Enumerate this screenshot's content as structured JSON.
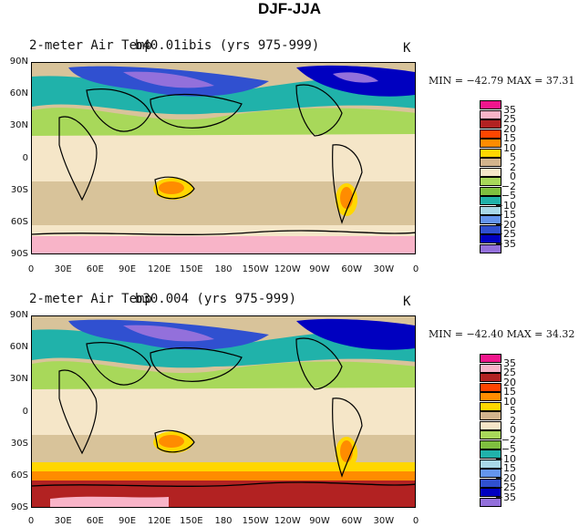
{
  "figure_title": "DJF-JJA",
  "panels": [
    {
      "variable_label": "2-meter Air Temp",
      "case_label": "b40.01ibis (yrs 975-999)",
      "units": "K",
      "min_max": "MIN = −42.79 MAX =  37.31",
      "lat_ticks": [
        "90N",
        "60N",
        "30N",
        "0",
        "30S",
        "60S",
        "90S"
      ],
      "lon_ticks": [
        "0",
        "30E",
        "60E",
        "90E",
        "120E",
        "150E",
        "180",
        "150W",
        "120W",
        "90W",
        "60W",
        "30W",
        "0"
      ]
    },
    {
      "variable_label": "2-meter Air Temp",
      "case_label": "b30.004 (yrs 975-999)",
      "units": "K",
      "min_max": "MIN = −42.40 MAX =  34.32",
      "lat_ticks": [
        "90N",
        "60N",
        "30N",
        "0",
        "30S",
        "60S",
        "90S"
      ],
      "lon_ticks": [
        "0",
        "30E",
        "60E",
        "90E",
        "120E",
        "150E",
        "180",
        "150W",
        "120W",
        "90W",
        "60W",
        "30W",
        "0"
      ]
    }
  ],
  "colorbar": {
    "labels": [
      "35",
      "25",
      "20",
      "15",
      "10",
      "5",
      "2",
      "0",
      "−2",
      "−5",
      "−10",
      "−15",
      "−20",
      "−25",
      "−35"
    ],
    "colors": [
      "#f0168c",
      "#f8b4c8",
      "#b22222",
      "#ff4500",
      "#ff8c00",
      "#ffd700",
      "#d2b48c",
      "#f5e6c8",
      "#a8d85a",
      "#7fbf3f",
      "#20b2aa",
      "#a8d8e8",
      "#6495ed",
      "#3050d0",
      "#0000c0",
      "#9370db"
    ]
  },
  "map_colors": {
    "ocean": "#d8c39a",
    "tropics": "#f5e6c8",
    "nh_mid": "#a8d85a",
    "nh_high": "#20b2aa",
    "land_cold": "#3050d0",
    "land_very_cold": "#0000c0",
    "polar": "#9370db",
    "sh_ice": "#f8b4c8",
    "sh_band": "#b22222",
    "hot": "#ff8c00",
    "warm": "#ffd700"
  }
}
